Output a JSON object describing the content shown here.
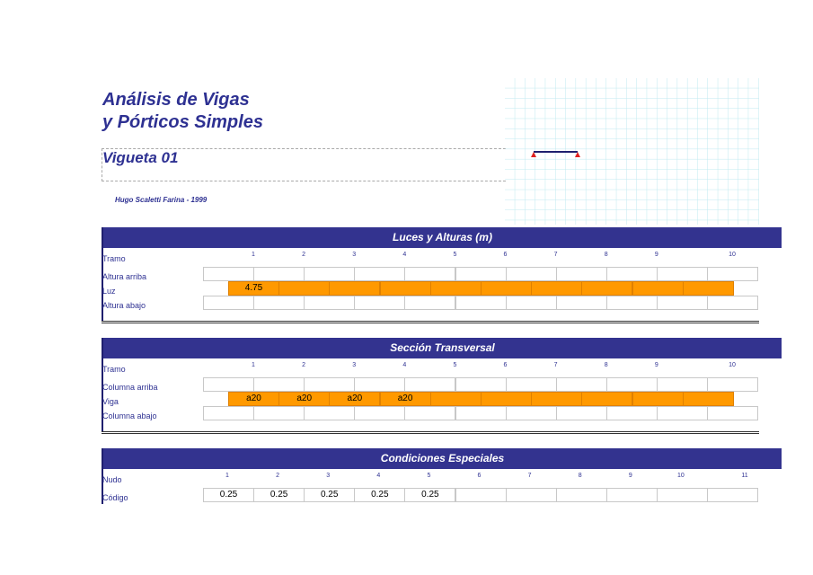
{
  "header": {
    "title_line1": "Análisis de Vigas",
    "title_line2": "y Pórticos Simples",
    "subtitle": "Vigueta 01",
    "author": "Hugo Scaletti Farina - 1999"
  },
  "sections": [
    {
      "title": "Luces y Alturas (m)",
      "column_label": "Tramo",
      "columns": [
        1,
        2,
        3,
        4,
        5,
        6,
        7,
        8,
        9,
        10
      ],
      "rows": [
        {
          "label": "Altura arriba"
        },
        {
          "label": "Luz",
          "color": "#ff9900",
          "values": [
            4.75
          ]
        },
        {
          "label": "Altura abajo"
        }
      ]
    },
    {
      "title": "Sección Transversal",
      "column_label": "Tramo",
      "columns": [
        1,
        2,
        3,
        4,
        5,
        6,
        7,
        8,
        9,
        10
      ],
      "rows": [
        {
          "label": "Columna arriba"
        },
        {
          "label": "Viga",
          "color": "#ff9900",
          "values": [
            "a20",
            "a20",
            "a20",
            "a20"
          ]
        },
        {
          "label": "Columna abajo"
        }
      ]
    },
    {
      "title": "Condiciones Especiales",
      "column_label": "Nudo",
      "columns": [
        1,
        2,
        3,
        4,
        5,
        6,
        7,
        8,
        9,
        10,
        11
      ],
      "rows": [
        {
          "label": "Código",
          "values": [
            0.25,
            0.25,
            0.25,
            0.25,
            0.25
          ]
        }
      ]
    }
  ]
}
